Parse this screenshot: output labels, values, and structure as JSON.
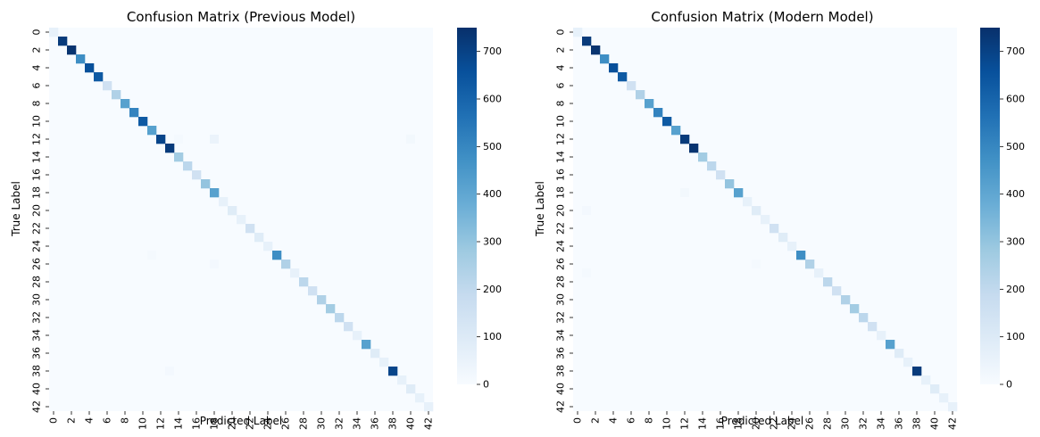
{
  "chart_data": [
    {
      "type": "heatmap",
      "title": "Confusion Matrix (Previous Model)",
      "xlabel": "Predicted Label",
      "ylabel": "True Label",
      "n_classes": 43,
      "tick_labels": [
        "0",
        "2",
        "4",
        "6",
        "8",
        "10",
        "12",
        "14",
        "16",
        "18",
        "20",
        "22",
        "24",
        "26",
        "28",
        "30",
        "32",
        "34",
        "36",
        "38",
        "40",
        "42"
      ],
      "tick_classes": [
        0,
        2,
        4,
        6,
        8,
        10,
        12,
        14,
        16,
        18,
        20,
        22,
        24,
        26,
        28,
        30,
        32,
        34,
        36,
        38,
        40,
        42
      ],
      "diagonal": [
        60,
        720,
        740,
        480,
        660,
        630,
        150,
        240,
        420,
        510,
        630,
        420,
        690,
        720,
        270,
        210,
        150,
        300,
        420,
        60,
        90,
        60,
        150,
        90,
        60,
        480,
        240,
        60,
        210,
        150,
        240,
        270,
        210,
        150,
        60,
        420,
        90,
        60,
        690,
        60,
        90,
        60,
        60
      ],
      "off_diagonal": [
        {
          "true": 12,
          "pred": 18,
          "value": 45
        },
        {
          "true": 12,
          "pred": 40,
          "value": 20
        },
        {
          "true": 26,
          "pred": 18,
          "value": 15
        },
        {
          "true": 38,
          "pred": 13,
          "value": 15
        },
        {
          "true": 25,
          "pred": 11,
          "value": 10
        },
        {
          "true": 12,
          "pred": 14,
          "value": 10
        }
      ],
      "colorbar": {
        "min": 0,
        "max": 750,
        "ticks": [
          0,
          100,
          200,
          300,
          400,
          500,
          600,
          700
        ]
      },
      "colormap": "Blues"
    },
    {
      "type": "heatmap",
      "title": "Confusion Matrix (Modern Model)",
      "xlabel": "Predicted Label",
      "ylabel": "True Label",
      "n_classes": 43,
      "tick_labels": [
        "0",
        "2",
        "4",
        "6",
        "8",
        "10",
        "12",
        "14",
        "16",
        "18",
        "20",
        "22",
        "24",
        "26",
        "28",
        "30",
        "32",
        "34",
        "36",
        "38",
        "40",
        "42"
      ],
      "tick_classes": [
        0,
        2,
        4,
        6,
        8,
        10,
        12,
        14,
        16,
        18,
        20,
        22,
        24,
        26,
        28,
        30,
        32,
        34,
        36,
        38,
        40,
        42
      ],
      "diagonal": [
        60,
        720,
        740,
        480,
        660,
        630,
        150,
        240,
        420,
        510,
        630,
        420,
        720,
        740,
        270,
        210,
        150,
        300,
        420,
        60,
        90,
        60,
        150,
        90,
        60,
        480,
        240,
        60,
        210,
        150,
        240,
        270,
        210,
        150,
        60,
        420,
        90,
        60,
        720,
        60,
        90,
        60,
        60
      ],
      "off_diagonal": [
        {
          "true": 18,
          "pred": 12,
          "value": 20
        },
        {
          "true": 20,
          "pred": 1,
          "value": 15
        },
        {
          "true": 27,
          "pred": 1,
          "value": 10
        },
        {
          "true": 26,
          "pred": 20,
          "value": 10
        }
      ],
      "colorbar": {
        "min": 0,
        "max": 750,
        "ticks": [
          0,
          100,
          200,
          300,
          400,
          500,
          600,
          700
        ]
      },
      "colormap": "Blues"
    }
  ]
}
